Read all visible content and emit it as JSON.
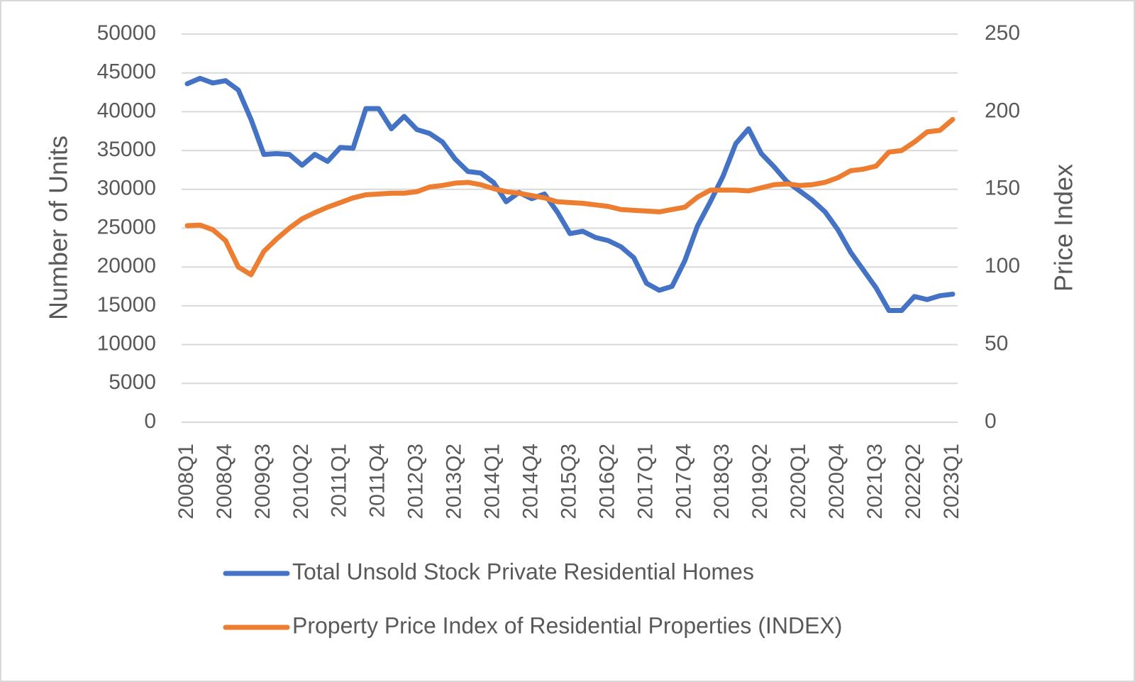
{
  "chart_data": {
    "type": "line",
    "y_label": "Number of Units",
    "y2_label": "Price Index",
    "categories": [
      "2008Q1",
      null,
      null,
      "2008Q4",
      null,
      null,
      "2009Q3",
      null,
      null,
      "2010Q2",
      null,
      null,
      "2011Q1",
      null,
      null,
      "2011Q4",
      null,
      null,
      "2012Q3",
      null,
      null,
      "2013Q2",
      null,
      null,
      "2014Q1",
      null,
      null,
      "2014Q4",
      null,
      null,
      "2015Q3",
      null,
      null,
      "2016Q2",
      null,
      null,
      "2017Q1",
      null,
      null,
      "2017Q4",
      null,
      null,
      "2018Q3",
      null,
      null,
      "2019Q2",
      null,
      null,
      "2020Q1",
      null,
      null,
      "2020Q4",
      null,
      null,
      "2021Q3",
      null,
      null,
      "2022Q2",
      null,
      null,
      "2023Q1"
    ],
    "series": [
      {
        "name": "Total Unsold Stock Private Residential Homes",
        "color": "#4472c4",
        "values": [
          43600,
          44300,
          43700,
          44000,
          42800,
          39000,
          34500,
          34600,
          34500,
          33100,
          34500,
          33600,
          35400,
          35300,
          40400,
          40400,
          37800,
          39400,
          37700,
          37200,
          36100,
          33900,
          32300,
          32100,
          30900,
          28400,
          29600,
          28800,
          29400,
          27100,
          24300,
          24600,
          23800,
          23400,
          22600,
          21200,
          17900,
          17000,
          17500,
          20800,
          25300,
          28400,
          31700,
          35900,
          37800,
          34600,
          32900,
          31000,
          29800,
          28600,
          27100,
          24800,
          21900,
          19600,
          17300,
          14400,
          14400,
          16200,
          15800,
          16300,
          16500
        ]
      },
      {
        "name": "Property Price Index of Residential Properties (INDEX)",
        "color": "#ed7d31",
        "axis": "y2",
        "values": [
          126.6,
          127,
          124,
          117,
          100,
          95,
          110,
          118,
          125,
          131,
          135,
          138.5,
          141.5,
          144.5,
          146.5,
          147,
          147.5,
          147.5,
          148.5,
          151.5,
          152.5,
          154,
          154.5,
          153,
          150.5,
          148.5,
          147.5,
          146,
          144.5,
          142,
          141.5,
          141,
          140,
          139,
          137,
          136.5,
          136,
          135.5,
          137,
          138.5,
          145,
          149.5,
          149.5,
          149.5,
          149,
          151,
          153,
          153.5,
          152.5,
          153,
          154.5,
          157.5,
          162,
          163,
          165,
          174,
          175,
          180.5,
          187,
          188,
          195
        ]
      }
    ],
    "ylim": [
      0,
      50000
    ],
    "yticks": [
      0,
      5000,
      10000,
      15000,
      20000,
      25000,
      30000,
      35000,
      40000,
      45000,
      50000
    ],
    "y2lim": [
      0,
      250
    ],
    "y2ticks": [
      0,
      50,
      100,
      150,
      200,
      250
    ],
    "grid": true,
    "legend": "bottom"
  }
}
